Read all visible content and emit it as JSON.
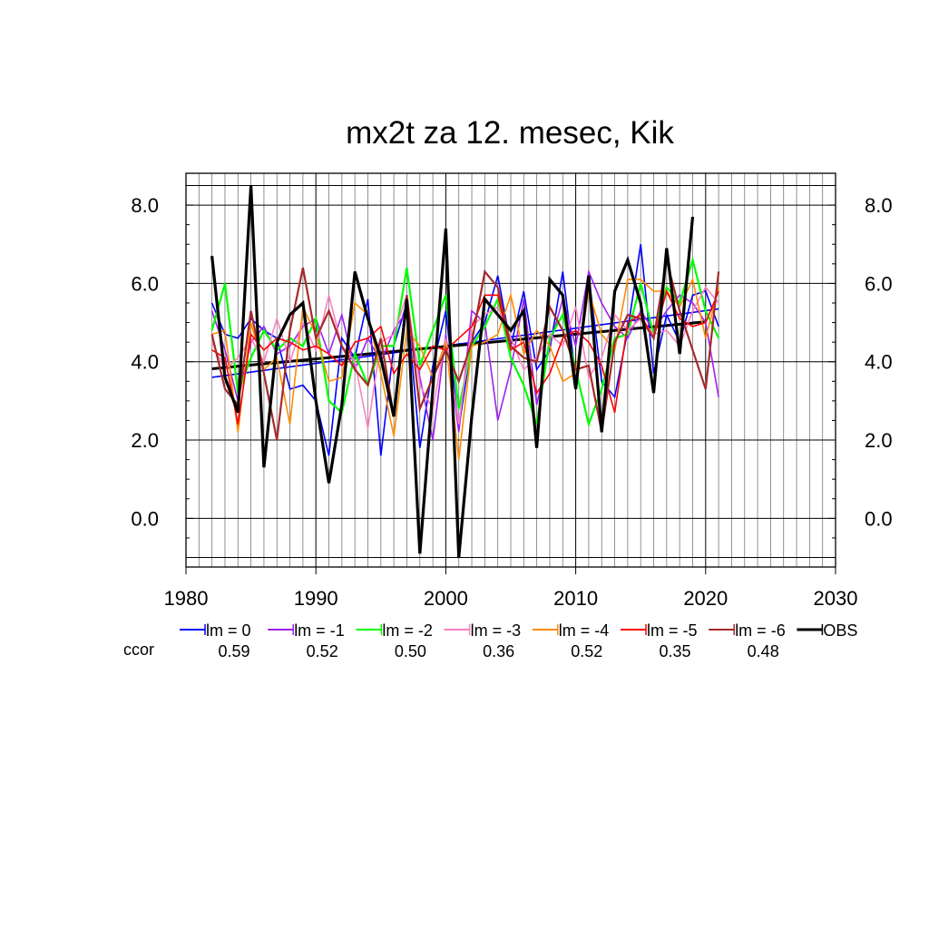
{
  "chart_data": {
    "type": "line",
    "title": "mx2t za 12. mesec, Kik",
    "xlabel": "",
    "ylabel": "",
    "xlim": [
      1980,
      2030
    ],
    "ylim": [
      -1,
      8.5
    ],
    "x_ticks": [
      1980,
      1990,
      2000,
      2010,
      2020,
      2030
    ],
    "x_tick_labels": [
      "1980",
      "1990",
      "2000",
      "2010",
      "2020",
      "2030"
    ],
    "y_ticks": [
      0,
      2,
      4,
      6,
      8
    ],
    "y_tick_labels": [
      "0.0",
      "2.0",
      "4.0",
      "6.0",
      "8.0"
    ],
    "grid": true,
    "legend_position": "bottom",
    "ccor_label": "ccor",
    "x": [
      1982,
      1983,
      1984,
      1985,
      1986,
      1987,
      1988,
      1989,
      1990,
      1991,
      1992,
      1993,
      1994,
      1995,
      1996,
      1997,
      1998,
      1999,
      2000,
      2001,
      2002,
      2003,
      2004,
      2005,
      2006,
      2007,
      2008,
      2009,
      2010,
      2011,
      2012,
      2013,
      2014,
      2015,
      2016,
      2017,
      2018,
      2019,
      2020,
      2021
    ],
    "series": [
      {
        "name": "lm = 0",
        "color": "#0000ff",
        "ccor": "0.59",
        "width": 1.6,
        "values": [
          5.5,
          4.7,
          4.6,
          5.1,
          4.8,
          4.6,
          3.3,
          3.4,
          3.0,
          1.6,
          4.6,
          4.1,
          5.6,
          1.6,
          4.4,
          5.5,
          1.8,
          3.9,
          5.3,
          2.3,
          4.5,
          5.0,
          6.2,
          4.4,
          5.8,
          3.8,
          4.3,
          6.3,
          3.6,
          6.2,
          3.5,
          3.1,
          4.8,
          7.0,
          3.7,
          5.2,
          4.5,
          5.7,
          5.8,
          4.9
        ]
      },
      {
        "name": "lm = -1",
        "color": "#a020f0",
        "ccor": "0.52",
        "width": 1.6,
        "values": [
          5.3,
          4.3,
          3.0,
          4.5,
          4.9,
          4.2,
          4.4,
          4.9,
          5.1,
          4.2,
          5.2,
          3.8,
          4.6,
          4.0,
          4.8,
          5.3,
          3.6,
          2.0,
          4.7,
          2.2,
          5.3,
          5.0,
          2.5,
          3.8,
          5.6,
          2.9,
          4.4,
          5.6,
          4.4,
          6.3,
          5.5,
          4.9,
          4.6,
          5.3,
          4.8,
          5.3,
          5.7,
          5.5,
          5.0,
          3.1
        ]
      },
      {
        "name": "lm = -2",
        "color": "#00ff00",
        "ccor": "0.50",
        "width": 2.2,
        "values": [
          4.8,
          6.0,
          3.2,
          4.1,
          4.8,
          4.3,
          4.6,
          4.4,
          5.1,
          3.0,
          2.7,
          4.2,
          3.4,
          4.4,
          4.4,
          6.4,
          3.9,
          4.8,
          5.7,
          2.8,
          4.4,
          4.9,
          5.6,
          4.1,
          3.4,
          2.4,
          4.6,
          5.2,
          3.8,
          2.4,
          3.3,
          4.6,
          4.7,
          6.0,
          4.7,
          5.9,
          5.5,
          6.6,
          5.3,
          4.6
        ]
      },
      {
        "name": "lm = -3",
        "color": "#ff80c0",
        "ccor": "0.36",
        "width": 1.6,
        "values": [
          4.5,
          3.8,
          4.1,
          4.6,
          4.0,
          5.1,
          4.0,
          5.0,
          4.3,
          5.7,
          4.4,
          4.0,
          2.3,
          4.5,
          4.7,
          5.7,
          3.4,
          2.8,
          4.6,
          2.4,
          4.9,
          5.2,
          5.4,
          4.6,
          3.8,
          4.1,
          4.7,
          4.4,
          5.4,
          3.6,
          4.1,
          5.2,
          4.8,
          5.1,
          4.7,
          4.8,
          4.4,
          5.3,
          5.9,
          5.5
        ]
      },
      {
        "name": "lm = -4",
        "color": "#ff8c00",
        "ccor": "0.52",
        "width": 1.6,
        "values": [
          4.7,
          4.8,
          2.2,
          5.0,
          3.8,
          4.1,
          2.4,
          5.4,
          4.7,
          3.5,
          3.6,
          5.5,
          5.2,
          3.7,
          2.1,
          4.8,
          4.4,
          3.6,
          4.5,
          1.5,
          4.4,
          4.5,
          4.7,
          5.7,
          4.2,
          4.8,
          4.4,
          3.5,
          3.7,
          5.8,
          4.7,
          4.3,
          6.1,
          6.1,
          5.8,
          5.8,
          5.4,
          6.1,
          4.6,
          5.9
        ]
      },
      {
        "name": "lm = -5",
        "color": "#ff0000",
        "ccor": "0.35",
        "width": 1.6,
        "values": [
          4.3,
          4.1,
          2.4,
          4.7,
          4.3,
          4.6,
          4.5,
          4.3,
          4.4,
          4.2,
          3.9,
          4.5,
          4.6,
          4.9,
          3.7,
          4.2,
          3.8,
          4.4,
          4.3,
          4.6,
          4.9,
          5.7,
          5.7,
          4.3,
          4.5,
          3.2,
          3.7,
          4.6,
          4.8,
          4.5,
          3.9,
          2.7,
          5.0,
          5.2,
          4.6,
          5.8,
          5.1,
          4.9,
          5.0,
          5.8
        ]
      },
      {
        "name": "lm = -6",
        "color": "#a52a2a",
        "ccor": "0.48",
        "width": 2.2,
        "values": [
          4.7,
          3.3,
          2.9,
          5.3,
          3.7,
          2.0,
          4.8,
          6.4,
          4.6,
          5.3,
          4.4,
          3.8,
          3.4,
          4.6,
          2.6,
          5.7,
          2.8,
          3.6,
          4.3,
          3.5,
          4.5,
          6.3,
          5.9,
          4.4,
          4.1,
          4.0,
          5.4,
          4.8,
          3.8,
          3.9,
          2.2,
          4.5,
          5.2,
          5.1,
          4.6,
          6.6,
          5.3,
          4.3,
          3.3,
          6.3
        ]
      },
      {
        "name": "OBS",
        "color": "#000000",
        "ccor": "",
        "width": 3.2,
        "values": [
          6.7,
          3.6,
          2.7,
          8.5,
          1.3,
          4.5,
          5.2,
          5.5,
          3.0,
          0.9,
          2.9,
          6.3,
          5.1,
          4.1,
          2.6,
          5.6,
          -0.9,
          3.3,
          7.4,
          -1.0,
          2.6,
          5.6,
          5.2,
          4.8,
          5.3,
          1.8,
          6.1,
          5.7,
          3.3,
          6.2,
          2.2,
          5.8,
          6.6,
          5.5,
          3.2,
          6.9,
          4.2,
          7.7,
          null,
          null
        ]
      }
    ],
    "trend_lines": [
      {
        "name": "lm = 0 trend",
        "color": "#0000ff",
        "width": 1.6,
        "x": [
          1982,
          2021
        ],
        "y": [
          3.6,
          5.35
        ]
      },
      {
        "name": "OBS trend",
        "color": "#000000",
        "width": 3.0,
        "x": [
          1982,
          2020
        ],
        "y": [
          3.82,
          5.02
        ]
      }
    ]
  }
}
